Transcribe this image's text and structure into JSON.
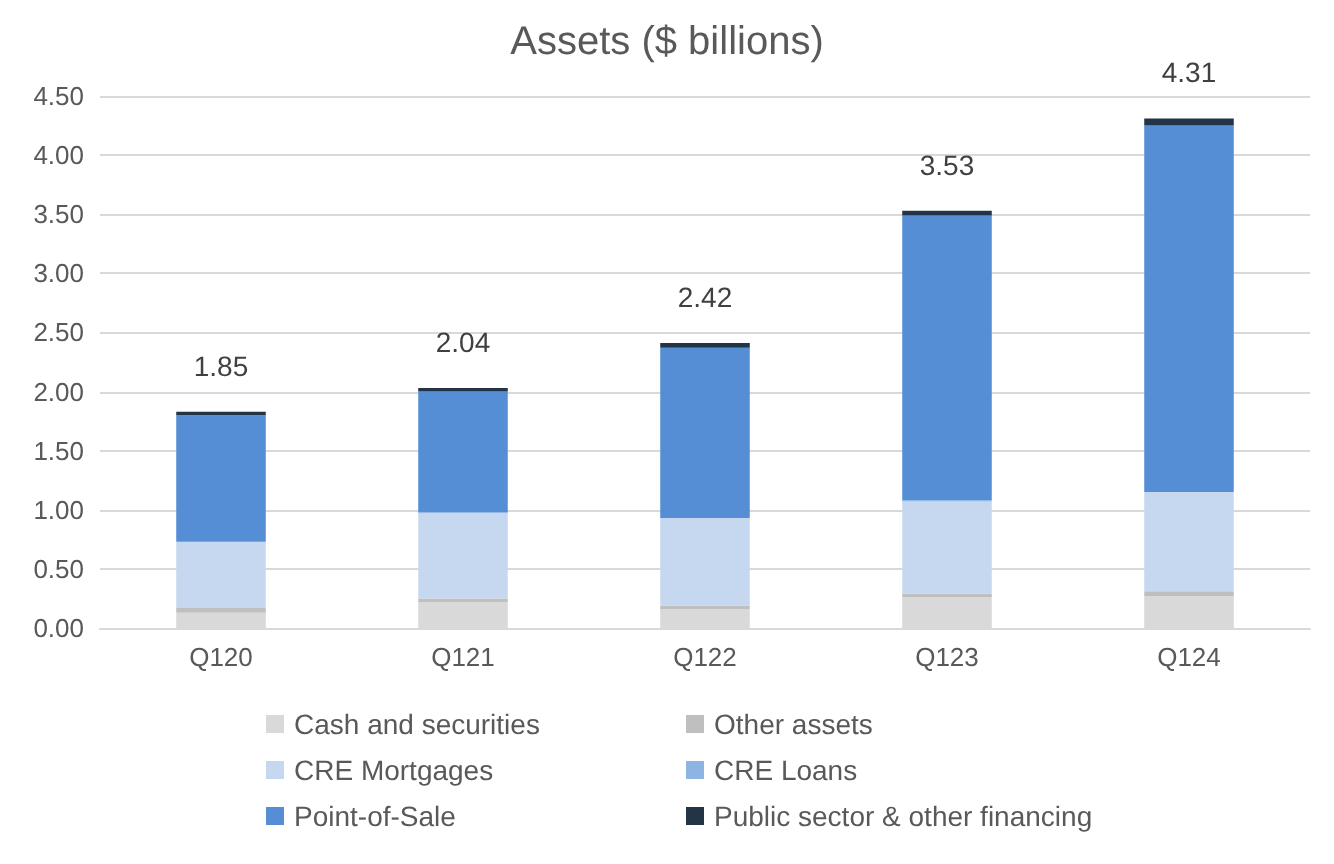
{
  "chart_data": {
    "type": "bar",
    "title": "Assets ($ billions)",
    "stacked": true,
    "categories": [
      "Q120",
      "Q121",
      "Q122",
      "Q123",
      "Q124"
    ],
    "series": [
      {
        "name": "Cash and securities",
        "color": "#d9d9d9",
        "values": [
          0.13,
          0.22,
          0.16,
          0.26,
          0.27
        ]
      },
      {
        "name": "Other assets",
        "color": "#bfbfbf",
        "values": [
          0.04,
          0.03,
          0.03,
          0.03,
          0.04
        ]
      },
      {
        "name": "CRE Mortgages",
        "color": "#c6d8f0",
        "values": [
          0.56,
          0.72,
          0.74,
          0.78,
          0.84
        ]
      },
      {
        "name": "CRE Loans",
        "color": "#8eb4e3",
        "values": [
          0,
          0.01,
          0,
          0.01,
          0
        ]
      },
      {
        "name": "Point-of-Sale",
        "color": "#558ed5",
        "values": [
          1.07,
          1.02,
          1.44,
          2.41,
          3.1
        ]
      },
      {
        "name": "Public sector & other financing",
        "color": "#243447",
        "values": [
          0.03,
          0.03,
          0.04,
          0.04,
          0.06
        ]
      }
    ],
    "totals": [
      "1.85",
      "2.04",
      "2.42",
      "3.53",
      "4.31"
    ],
    "ylim": [
      0,
      4.5
    ],
    "yticks": [
      {
        "value": 0,
        "label": "0.00"
      },
      {
        "value": 0.5,
        "label": "0.50"
      },
      {
        "value": 1,
        "label": "1.00"
      },
      {
        "value": 1.5,
        "label": "1.50"
      },
      {
        "value": 2,
        "label": "2.00"
      },
      {
        "value": 2.5,
        "label": "2.50"
      },
      {
        "value": 3,
        "label": "3.00"
      },
      {
        "value": 3.5,
        "label": "3.50"
      },
      {
        "value": 4,
        "label": "4.00"
      },
      {
        "value": 4.5,
        "label": "4.50"
      }
    ],
    "grid": "y",
    "legend": "bottom"
  }
}
